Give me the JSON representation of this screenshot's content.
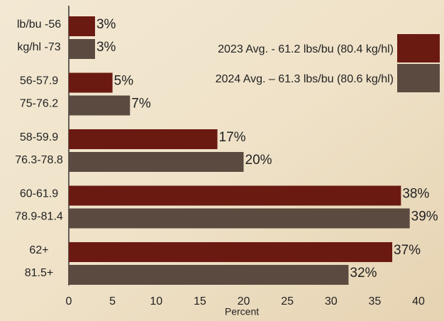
{
  "chart_data": {
    "type": "hbar",
    "categories": [
      [
        "lb/bu -56",
        "kg/hl -73"
      ],
      [
        "56-57.9",
        "75-76.2"
      ],
      [
        "58-59.9",
        "76.3-78.8"
      ],
      [
        "60-61.9",
        "78.9-81.4"
      ],
      [
        "62+",
        "81.5+"
      ]
    ],
    "series": [
      {
        "name": "2023 Avg. - 61.2 lbs/bu (80.4 kg/hl)",
        "color": "#6b1a12",
        "values": [
          3,
          5,
          17,
          38,
          37
        ],
        "value_labels": [
          "3%",
          "5%",
          "17%",
          "38%",
          "37%"
        ]
      },
      {
        "name": "2024 Avg. – 61.3 lbs/bu (80.6 kg/hl)",
        "color": "#5b4a40",
        "values": [
          3,
          7,
          20,
          39,
          32
        ],
        "value_labels": [
          "3%",
          "7%",
          "20%",
          "39%",
          "32%"
        ]
      }
    ],
    "xlabel": "Percent",
    "xlim": [
      0,
      40
    ],
    "xticks": [
      0,
      5,
      10,
      15,
      20,
      25,
      30,
      35,
      40
    ]
  }
}
